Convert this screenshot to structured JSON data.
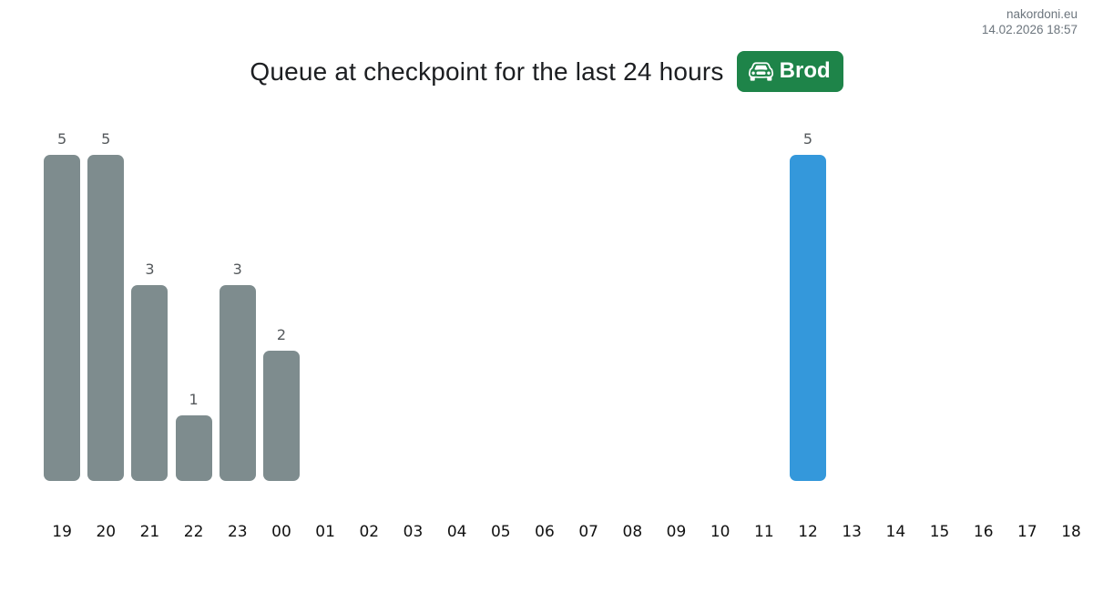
{
  "header": {
    "site": "nakordoni.eu",
    "timestamp": "14.02.2026 18:57"
  },
  "title": {
    "text": "Queue at checkpoint for the last 24 hours",
    "badge_label": "Brod",
    "badge_icon": "car-front-icon"
  },
  "colors": {
    "bar_default": "#7e8c8e",
    "bar_highlight": "#3498db",
    "badge_background": "#1e8449",
    "badge_text": "#ffffff",
    "value_label": "#55595c",
    "axis_label": "#111111",
    "header_text": "#6c757d",
    "title_text": "#1c1e21",
    "page_background": "#ffffff"
  },
  "chart_data": {
    "type": "bar",
    "title": "Queue at checkpoint for the last 24 hours",
    "xlabel": "",
    "ylabel": "",
    "categories": [
      "19",
      "20",
      "21",
      "22",
      "23",
      "00",
      "01",
      "02",
      "03",
      "04",
      "05",
      "06",
      "07",
      "08",
      "09",
      "10",
      "11",
      "12",
      "13",
      "14",
      "15",
      "16",
      "17",
      "18"
    ],
    "values": [
      5,
      5,
      3,
      1,
      3,
      2,
      0,
      0,
      0,
      0,
      0,
      0,
      0,
      0,
      0,
      0,
      0,
      5,
      0,
      0,
      0,
      0,
      0,
      0
    ],
    "highlight_category": "12",
    "ylim": [
      0,
      5
    ],
    "grid": false,
    "legend": "none",
    "value_labels": "shown above non-zero bars only"
  }
}
